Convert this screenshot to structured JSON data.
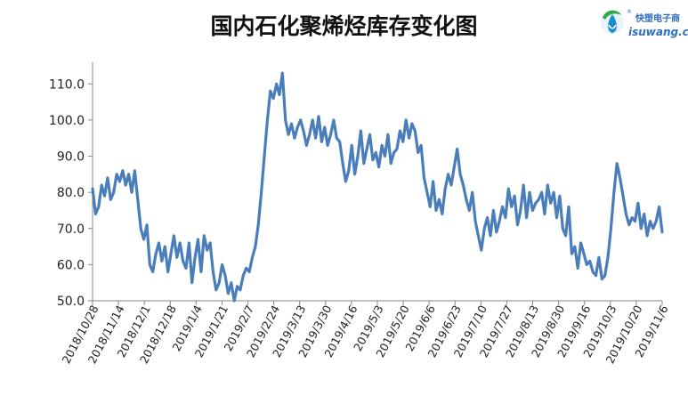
{
  "chart_data": {
    "type": "line",
    "title": "国内石化聚烯烃库存变化图",
    "xlabel": "",
    "ylabel": "",
    "ylim": [
      50.0,
      115.0
    ],
    "yticks": [
      "50.0",
      "60.0",
      "70.0",
      "80.0",
      "90.0",
      "100.0",
      "110.0"
    ],
    "xticks": [
      "2018/10/28",
      "2018/11/14",
      "2018/12/1",
      "2018/12/18",
      "2019/1/4",
      "2019/1/21",
      "2019/2/7",
      "2019/2/24",
      "2019/3/13",
      "2019/3/30",
      "2019/4/16",
      "2019/5/3",
      "2019/5/20",
      "2019/6/6",
      "2019/6/23",
      "2019/7/10",
      "2019/7/27",
      "2019/8/13",
      "2019/8/30",
      "2019/9/16",
      "2019/10/3",
      "2019/10/20",
      "2019/11/6"
    ],
    "x_start": "2018/10/28",
    "x_end": "2019/11/6",
    "grid": false,
    "series_color": "#4a7ebb",
    "values": [
      81,
      74,
      76,
      82,
      79,
      84,
      78,
      80,
      85,
      83,
      86,
      82,
      85,
      80,
      86,
      78,
      70,
      67,
      71,
      60,
      58,
      63,
      66,
      61,
      65,
      58,
      63,
      68,
      62,
      66,
      61,
      59,
      66,
      55,
      62,
      67,
      58,
      68,
      64,
      66,
      58,
      53,
      55,
      60,
      57,
      52,
      55,
      50,
      54,
      53,
      57,
      59,
      58,
      62,
      65,
      71,
      80,
      90,
      100,
      108,
      106,
      110,
      107,
      113,
      100,
      96,
      99,
      95,
      98,
      100,
      97,
      93,
      96,
      100,
      95,
      101,
      94,
      98,
      93,
      96,
      100,
      95,
      94,
      88,
      83,
      86,
      93,
      85,
      90,
      97,
      88,
      92,
      96,
      89,
      91,
      87,
      93,
      90,
      96,
      88,
      91,
      92,
      97,
      94,
      100,
      95,
      99,
      97,
      91,
      93,
      84,
      80,
      76,
      83,
      75,
      78,
      74,
      81,
      85,
      82,
      87,
      92,
      85,
      82,
      78,
      75,
      80,
      72,
      68,
      64,
      70,
      73,
      68,
      75,
      69,
      72,
      76,
      73,
      81,
      76,
      79,
      71,
      75,
      82,
      73,
      80,
      75,
      77,
      78,
      80,
      74,
      82,
      77,
      80,
      73,
      79,
      70,
      68,
      76,
      63,
      65,
      59,
      66,
      63,
      60,
      61,
      58,
      57,
      62,
      56,
      57,
      62,
      70,
      80,
      88,
      84,
      79,
      74,
      71,
      73,
      72,
      77,
      70,
      74,
      68,
      72,
      70,
      72,
      76,
      69
    ]
  },
  "logo": {
    "top_text": "快塑电子商",
    "bottom_text": "isuwang.co",
    "mark": "®",
    "color": "#2e6fc0",
    "leaf_color": "#33a84a",
    "drop_color": "#1d8fcf"
  }
}
